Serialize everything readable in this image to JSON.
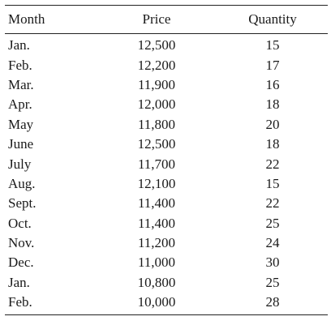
{
  "table": {
    "headers": {
      "month": "Month",
      "price": "Price",
      "quantity": "Quantity"
    },
    "rows": [
      {
        "month": "Jan.",
        "price": "12,500",
        "quantity": "15"
      },
      {
        "month": "Feb.",
        "price": "12,200",
        "quantity": "17"
      },
      {
        "month": "Mar.",
        "price": "11,900",
        "quantity": "16"
      },
      {
        "month": "Apr.",
        "price": "12,000",
        "quantity": "18"
      },
      {
        "month": "May",
        "price": "11,800",
        "quantity": "20"
      },
      {
        "month": "June",
        "price": "12,500",
        "quantity": "18"
      },
      {
        "month": "July",
        "price": "11,700",
        "quantity": "22"
      },
      {
        "month": "Aug.",
        "price": "12,100",
        "quantity": "15"
      },
      {
        "month": "Sept.",
        "price": "11,400",
        "quantity": "22"
      },
      {
        "month": "Oct.",
        "price": "11,400",
        "quantity": "25"
      },
      {
        "month": "Nov.",
        "price": "11,200",
        "quantity": "24"
      },
      {
        "month": "Dec.",
        "price": "11,000",
        "quantity": "30"
      },
      {
        "month": "Jan.",
        "price": "10,800",
        "quantity": "25"
      },
      {
        "month": "Feb.",
        "price": "10,000",
        "quantity": "28"
      }
    ]
  }
}
